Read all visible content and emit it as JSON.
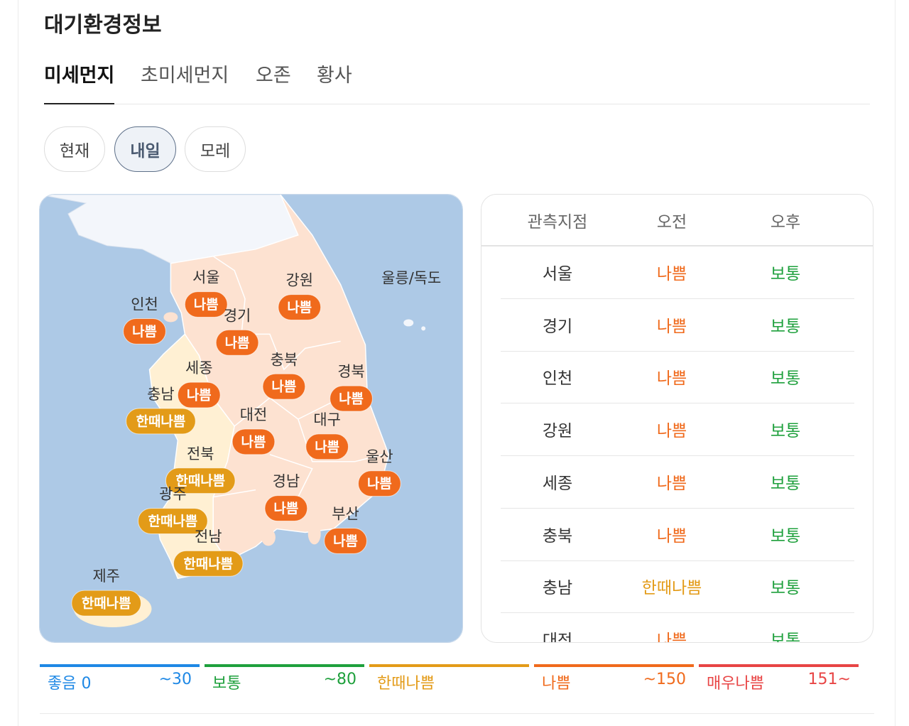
{
  "header": {
    "title": "대기환경정보"
  },
  "tabs": [
    {
      "label": "미세먼지",
      "selected": true
    },
    {
      "label": "초미세먼지"
    },
    {
      "label": "오존"
    },
    {
      "label": "황사"
    }
  ],
  "day_buttons": [
    {
      "label": "현재"
    },
    {
      "label": "내일",
      "selected": true
    },
    {
      "label": "모레"
    }
  ],
  "map": {
    "island_label": "울릉/독도",
    "regions": [
      {
        "name": "서울",
        "status": "나쁨",
        "color": "#f06a1c"
      },
      {
        "name": "강원",
        "status": "나쁨",
        "color": "#f06a1c"
      },
      {
        "name": "인천",
        "status": "나쁨",
        "color": "#f06a1c"
      },
      {
        "name": "경기",
        "status": "나쁨",
        "color": "#f06a1c"
      },
      {
        "name": "세종",
        "status": "나쁨",
        "color": "#f06a1c"
      },
      {
        "name": "충북",
        "status": "나쁨",
        "color": "#f06a1c"
      },
      {
        "name": "경북",
        "status": "나쁨",
        "color": "#f06a1c"
      },
      {
        "name": "충남",
        "status": "한때나쁨",
        "color": "#e39b18"
      },
      {
        "name": "대전",
        "status": "나쁨",
        "color": "#f06a1c"
      },
      {
        "name": "대구",
        "status": "나쁨",
        "color": "#f06a1c"
      },
      {
        "name": "전북",
        "status": "한때나쁨",
        "color": "#e39b18"
      },
      {
        "name": "울산",
        "status": "나쁨",
        "color": "#f06a1c"
      },
      {
        "name": "경남",
        "status": "나쁨",
        "color": "#f06a1c"
      },
      {
        "name": "광주",
        "status": "한때나쁨",
        "color": "#e39b18"
      },
      {
        "name": "부산",
        "status": "나쁨",
        "color": "#f06a1c"
      },
      {
        "name": "전남",
        "status": "한때나쁨",
        "color": "#e39b18"
      },
      {
        "name": "제주",
        "status": "한때나쁨",
        "color": "#e39b18"
      }
    ]
  },
  "table": {
    "headers": [
      "관측지점",
      "오전",
      "오후"
    ],
    "rows": [
      {
        "station": "서울",
        "am": "나쁨",
        "am_color": "#f06a1c",
        "pm": "보통",
        "pm_color": "#1ea03c"
      },
      {
        "station": "경기",
        "am": "나쁨",
        "am_color": "#f06a1c",
        "pm": "보통",
        "pm_color": "#1ea03c"
      },
      {
        "station": "인천",
        "am": "나쁨",
        "am_color": "#f06a1c",
        "pm": "보통",
        "pm_color": "#1ea03c"
      },
      {
        "station": "강원",
        "am": "나쁨",
        "am_color": "#f06a1c",
        "pm": "보통",
        "pm_color": "#1ea03c"
      },
      {
        "station": "세종",
        "am": "나쁨",
        "am_color": "#f06a1c",
        "pm": "보통",
        "pm_color": "#1ea03c"
      },
      {
        "station": "충북",
        "am": "나쁨",
        "am_color": "#f06a1c",
        "pm": "보통",
        "pm_color": "#1ea03c"
      },
      {
        "station": "충남",
        "am": "한때나쁨",
        "am_color": "#e39b18",
        "pm": "보통",
        "pm_color": "#1ea03c"
      },
      {
        "station": "대전",
        "am": "나쁨",
        "am_color": "#f06a1c",
        "pm": "보통",
        "pm_color": "#1ea03c"
      }
    ]
  },
  "legend": [
    {
      "label": "좋음 0",
      "end": "~30",
      "color": "#1e88e5"
    },
    {
      "label": "보통",
      "end": "~80",
      "color": "#1ea03c"
    },
    {
      "label": "한때나쁨",
      "color": "#e39b18"
    },
    {
      "label": "나쁨",
      "end": "~150",
      "color": "#f06a1c"
    },
    {
      "label": "매우나쁨",
      "end": "151~",
      "color": "#e84545"
    }
  ]
}
